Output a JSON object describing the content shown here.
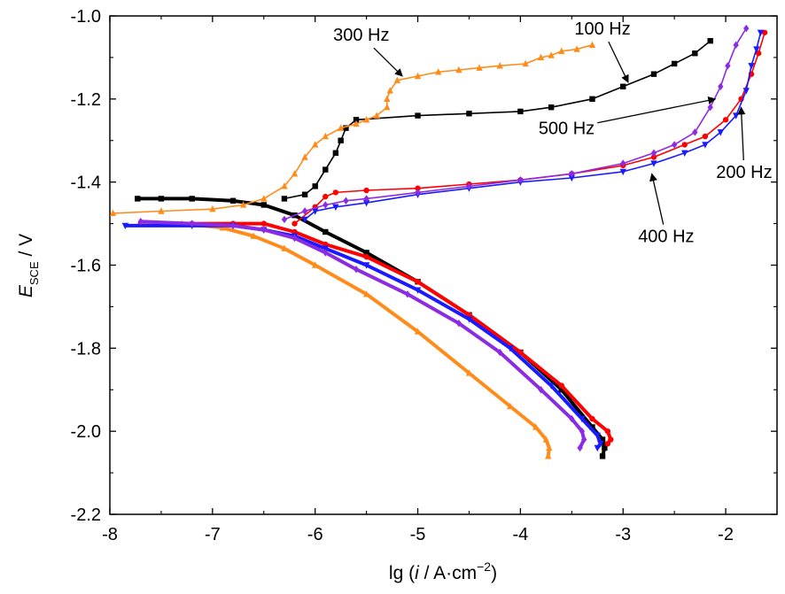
{
  "chart_data": {
    "type": "line",
    "xlabel": {
      "prefix": "lg (",
      "var": "i",
      "mid": " / A·cm",
      "sup": "−2",
      "suffix": ")"
    },
    "ylabel": {
      "var": "E",
      "sub": "SCE",
      "suffix": " / V"
    },
    "xlim": [
      -8,
      -1.5
    ],
    "ylim": [
      -2.2,
      -1.0
    ],
    "xticks": [
      -8,
      -7,
      -6,
      -5,
      -4,
      -3,
      -2
    ],
    "xtick_labels": [
      "-8",
      "-7",
      "-6",
      "-5",
      "-4",
      "-3",
      "-2"
    ],
    "yticks": [
      -1.0,
      -1.2,
      -1.4,
      -1.6,
      -1.8,
      -2.0,
      -2.2
    ],
    "ytick_labels": [
      "-1.0",
      "-1.2",
      "-1.4",
      "-1.6",
      "-1.8",
      "-2.0",
      "-2.2"
    ],
    "grid": false,
    "series": [
      {
        "name": "100 Hz",
        "color": "#000000",
        "marker": "square",
        "cathodic": [
          [
            -3.2,
            -2.06
          ],
          [
            -3.18,
            -2.04
          ],
          [
            -3.2,
            -2.02
          ],
          [
            -3.3,
            -1.99
          ],
          [
            -3.6,
            -1.9
          ],
          [
            -4.0,
            -1.81
          ],
          [
            -4.5,
            -1.72
          ],
          [
            -5.0,
            -1.64
          ],
          [
            -5.5,
            -1.57
          ],
          [
            -5.9,
            -1.52
          ],
          [
            -6.2,
            -1.48
          ],
          [
            -6.5,
            -1.455
          ],
          [
            -6.8,
            -1.445
          ],
          [
            -7.2,
            -1.44
          ],
          [
            -7.5,
            -1.44
          ],
          [
            -7.73,
            -1.44
          ]
        ],
        "anodic": [
          [
            -6.3,
            -1.44
          ],
          [
            -6.1,
            -1.43
          ],
          [
            -6.0,
            -1.41
          ],
          [
            -5.9,
            -1.37
          ],
          [
            -5.8,
            -1.33
          ],
          [
            -5.75,
            -1.3
          ],
          [
            -5.7,
            -1.27
          ],
          [
            -5.6,
            -1.25
          ],
          [
            -5.0,
            -1.24
          ],
          [
            -4.5,
            -1.235
          ],
          [
            -4.0,
            -1.23
          ],
          [
            -3.7,
            -1.22
          ],
          [
            -3.3,
            -1.2
          ],
          [
            -3.0,
            -1.17
          ],
          [
            -2.7,
            -1.14
          ],
          [
            -2.5,
            -1.115
          ],
          [
            -2.3,
            -1.09
          ],
          [
            -2.15,
            -1.06
          ]
        ]
      },
      {
        "name": "200 Hz",
        "color": "#ff0000",
        "marker": "circle",
        "cathodic": [
          [
            -3.15,
            -2.03
          ],
          [
            -3.12,
            -2.02
          ],
          [
            -3.15,
            -2.0
          ],
          [
            -3.3,
            -1.97
          ],
          [
            -3.6,
            -1.89
          ],
          [
            -4.0,
            -1.81
          ],
          [
            -4.5,
            -1.72
          ],
          [
            -5.0,
            -1.64
          ],
          [
            -5.5,
            -1.58
          ],
          [
            -5.9,
            -1.55
          ],
          [
            -6.2,
            -1.52
          ],
          [
            -6.5,
            -1.5
          ],
          [
            -6.8,
            -1.5
          ],
          [
            -7.2,
            -1.5
          ],
          [
            -7.7,
            -1.5
          ]
        ],
        "anodic": [
          [
            -6.2,
            -1.5
          ],
          [
            -6.0,
            -1.46
          ],
          [
            -5.9,
            -1.435
          ],
          [
            -5.8,
            -1.425
          ],
          [
            -5.5,
            -1.42
          ],
          [
            -5.0,
            -1.415
          ],
          [
            -4.5,
            -1.405
          ],
          [
            -4.0,
            -1.395
          ],
          [
            -3.5,
            -1.38
          ],
          [
            -3.0,
            -1.36
          ],
          [
            -2.7,
            -1.34
          ],
          [
            -2.4,
            -1.31
          ],
          [
            -2.2,
            -1.29
          ],
          [
            -2.0,
            -1.25
          ],
          [
            -1.85,
            -1.2
          ],
          [
            -1.75,
            -1.14
          ],
          [
            -1.68,
            -1.09
          ],
          [
            -1.62,
            -1.04
          ]
        ]
      },
      {
        "name": "300 Hz",
        "color": "#ff8c1a",
        "marker": "triangle-up",
        "cathodic": [
          [
            -3.73,
            -2.06
          ],
          [
            -3.72,
            -2.04
          ],
          [
            -3.75,
            -2.02
          ],
          [
            -3.85,
            -1.99
          ],
          [
            -4.1,
            -1.94
          ],
          [
            -4.5,
            -1.86
          ],
          [
            -5.0,
            -1.76
          ],
          [
            -5.5,
            -1.67
          ],
          [
            -6.0,
            -1.6
          ],
          [
            -6.3,
            -1.56
          ],
          [
            -6.6,
            -1.53
          ],
          [
            -6.9,
            -1.51
          ],
          [
            -7.3,
            -1.5
          ],
          [
            -7.7,
            -1.5
          ]
        ],
        "anodic": [
          [
            -7.97,
            -1.475
          ],
          [
            -7.5,
            -1.47
          ],
          [
            -7.0,
            -1.465
          ],
          [
            -6.7,
            -1.455
          ],
          [
            -6.5,
            -1.44
          ],
          [
            -6.3,
            -1.41
          ],
          [
            -6.2,
            -1.38
          ],
          [
            -6.1,
            -1.34
          ],
          [
            -6.0,
            -1.31
          ],
          [
            -5.9,
            -1.29
          ],
          [
            -5.75,
            -1.27
          ],
          [
            -5.6,
            -1.26
          ],
          [
            -5.5,
            -1.25
          ],
          [
            -5.4,
            -1.24
          ],
          [
            -5.3,
            -1.22
          ],
          [
            -5.3,
            -1.2
          ],
          [
            -5.27,
            -1.18
          ],
          [
            -5.2,
            -1.155
          ],
          [
            -5.0,
            -1.145
          ],
          [
            -4.8,
            -1.135
          ],
          [
            -4.6,
            -1.13
          ],
          [
            -4.4,
            -1.125
          ],
          [
            -4.2,
            -1.12
          ],
          [
            -3.95,
            -1.115
          ],
          [
            -3.8,
            -1.1
          ],
          [
            -3.7,
            -1.095
          ],
          [
            -3.6,
            -1.085
          ],
          [
            -3.45,
            -1.08
          ],
          [
            -3.3,
            -1.07
          ]
        ]
      },
      {
        "name": "400 Hz",
        "color": "#1a1aff",
        "marker": "triangle-down",
        "cathodic": [
          [
            -3.25,
            -2.04
          ],
          [
            -3.22,
            -2.03
          ],
          [
            -3.25,
            -2.01
          ],
          [
            -3.4,
            -1.97
          ],
          [
            -3.7,
            -1.89
          ],
          [
            -4.1,
            -1.8
          ],
          [
            -4.5,
            -1.73
          ],
          [
            -5.0,
            -1.66
          ],
          [
            -5.5,
            -1.6
          ],
          [
            -5.9,
            -1.56
          ],
          [
            -6.2,
            -1.53
          ],
          [
            -6.5,
            -1.515
          ],
          [
            -6.8,
            -1.505
          ],
          [
            -7.2,
            -1.505
          ],
          [
            -7.85,
            -1.505
          ]
        ],
        "anodic": [
          [
            -6.1,
            -1.49
          ],
          [
            -6.0,
            -1.47
          ],
          [
            -5.8,
            -1.46
          ],
          [
            -5.5,
            -1.45
          ],
          [
            -5.0,
            -1.43
          ],
          [
            -4.5,
            -1.415
          ],
          [
            -4.0,
            -1.4
          ],
          [
            -3.5,
            -1.39
          ],
          [
            -3.0,
            -1.375
          ],
          [
            -2.7,
            -1.355
          ],
          [
            -2.4,
            -1.33
          ],
          [
            -2.2,
            -1.31
          ],
          [
            -2.05,
            -1.28
          ],
          [
            -1.9,
            -1.24
          ],
          [
            -1.8,
            -1.18
          ],
          [
            -1.75,
            -1.12
          ],
          [
            -1.7,
            -1.08
          ],
          [
            -1.66,
            -1.04
          ]
        ]
      },
      {
        "name": "500 Hz",
        "color": "#8b2be2",
        "marker": "diamond",
        "cathodic": [
          [
            -3.42,
            -2.04
          ],
          [
            -3.38,
            -2.02
          ],
          [
            -3.4,
            -2.0
          ],
          [
            -3.5,
            -1.97
          ],
          [
            -3.8,
            -1.9
          ],
          [
            -4.2,
            -1.81
          ],
          [
            -4.6,
            -1.74
          ],
          [
            -5.1,
            -1.67
          ],
          [
            -5.6,
            -1.61
          ],
          [
            -5.9,
            -1.57
          ],
          [
            -6.2,
            -1.535
          ],
          [
            -6.5,
            -1.515
          ],
          [
            -6.8,
            -1.505
          ],
          [
            -7.2,
            -1.5
          ],
          [
            -7.7,
            -1.495
          ]
        ],
        "anodic": [
          [
            -6.3,
            -1.49
          ],
          [
            -6.1,
            -1.47
          ],
          [
            -5.9,
            -1.455
          ],
          [
            -5.7,
            -1.445
          ],
          [
            -5.5,
            -1.44
          ],
          [
            -5.0,
            -1.425
          ],
          [
            -4.5,
            -1.41
          ],
          [
            -4.0,
            -1.395
          ],
          [
            -3.5,
            -1.38
          ],
          [
            -3.0,
            -1.355
          ],
          [
            -2.7,
            -1.33
          ],
          [
            -2.5,
            -1.31
          ],
          [
            -2.3,
            -1.28
          ],
          [
            -2.15,
            -1.22
          ],
          [
            -2.05,
            -1.17
          ],
          [
            -1.98,
            -1.12
          ],
          [
            -1.9,
            -1.07
          ],
          [
            -1.8,
            -1.03
          ]
        ]
      }
    ],
    "annotations": [
      {
        "label": "300 Hz",
        "x": -5.55,
        "y": -1.06,
        "target_x": -5.15,
        "target_y": -1.145
      },
      {
        "label": "100 Hz",
        "x": -3.2,
        "y": -1.045,
        "target_x": -2.95,
        "target_y": -1.16
      },
      {
        "label": "500 Hz",
        "x": -3.55,
        "y": -1.285,
        "target_x": -2.1,
        "target_y": -1.2
      },
      {
        "label": "200 Hz",
        "x": -1.82,
        "y": -1.39,
        "target_x": -1.85,
        "target_y": -1.22
      },
      {
        "label": "400 Hz",
        "x": -2.58,
        "y": -1.545,
        "target_x": -2.72,
        "target_y": -1.38
      }
    ]
  }
}
